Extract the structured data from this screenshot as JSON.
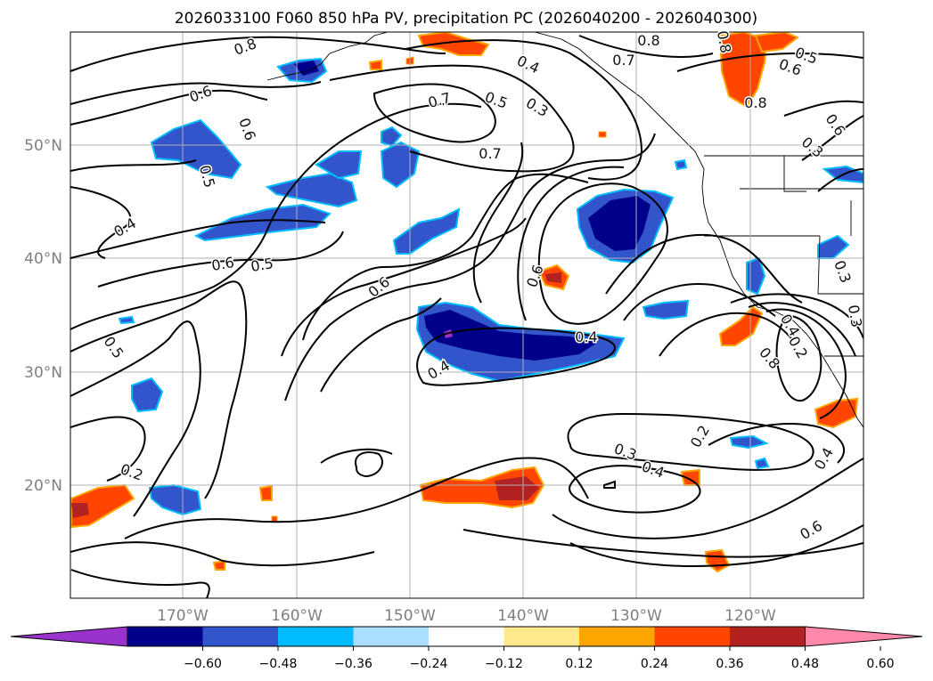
{
  "title": "2026033100 F060 850 hPa PV, precipitation PC (2026040200 - 2026040300)",
  "map": {
    "lat_labels": [
      "50°N",
      "40°N",
      "30°N",
      "20°N"
    ],
    "lon_labels": [
      "170°W",
      "160°W",
      "150°W",
      "140°W",
      "130°W",
      "120°W"
    ],
    "gridlines": true
  },
  "contour_labels": [
    "0.8",
    "0.6",
    "0.6",
    "0.5",
    "0.4",
    "0.6",
    "0.5",
    "0.5",
    "0.2",
    "0.7",
    "0.5",
    "0.3",
    "0.4",
    "0.7",
    "0.6",
    "0.4",
    "0.4",
    "0.6",
    "0.7",
    "0.8",
    "0.8",
    "0.5",
    "0.6",
    "0.8",
    "0.6",
    "0.3",
    "0.3",
    "0.3",
    "0.4",
    "0.2",
    "0.3",
    "0.4",
    "0.2",
    "0.4",
    "0.6",
    "0.8"
  ],
  "colorbar": {
    "ticks": [
      "−0.60",
      "−0.48",
      "−0.36",
      "−0.24",
      "−0.12",
      "0.12",
      "0.24",
      "0.36",
      "0.48",
      "0.60"
    ],
    "colors": [
      "#9933cc",
      "#00008b",
      "#3355cc",
      "#00bbff",
      "#aadfff",
      "#ffffff",
      "#ffe98c",
      "#ffa500",
      "#ff4500",
      "#b22222",
      "#ff88aa"
    ]
  }
}
